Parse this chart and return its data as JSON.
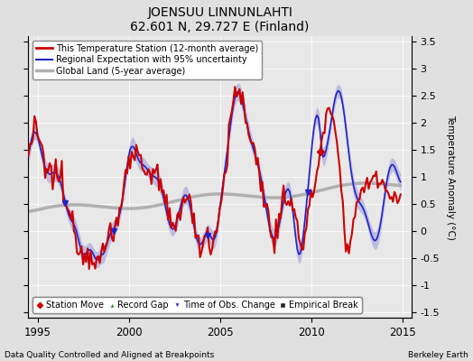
{
  "title": "JOENSUU LINNUNLAHTI",
  "subtitle": "62.601 N, 29.727 E (Finland)",
  "footer_left": "Data Quality Controlled and Aligned at Breakpoints",
  "footer_right": "Berkeley Earth",
  "xlim": [
    1994.5,
    2015.5
  ],
  "ylim": [
    -1.6,
    3.6
  ],
  "yticks": [
    -1.5,
    -1,
    -0.5,
    0,
    0.5,
    1,
    1.5,
    2,
    2.5,
    3,
    3.5
  ],
  "xticks": [
    1995,
    2000,
    2005,
    2010,
    2015
  ],
  "background_color": "#e0e0e0",
  "plot_bg_color": "#e8e8e8",
  "station_color": "#cc0000",
  "regional_color": "#2222cc",
  "regional_fill": "#aaaadd",
  "global_color": "#b0b0b0",
  "legend_items": [
    {
      "label": "This Temperature Station (12-month average)",
      "color": "#cc0000",
      "lw": 2
    },
    {
      "label": "Regional Expectation with 95% uncertainty",
      "color": "#2222cc",
      "lw": 1.5
    },
    {
      "label": "Global Land (5-year average)",
      "color": "#b0b0b0",
      "lw": 2.5
    }
  ],
  "legend2_items": [
    {
      "label": "Station Move",
      "color": "#cc0000",
      "marker": "D"
    },
    {
      "label": "Record Gap",
      "color": "#228822",
      "marker": "^"
    },
    {
      "label": "Time of Obs. Change",
      "color": "#2222cc",
      "marker": "v"
    },
    {
      "label": "Empirical Break",
      "color": "#222222",
      "marker": "s"
    }
  ],
  "marker_events": {
    "time_of_obs": [
      1996.5,
      1999.2,
      2004.3,
      2009.8
    ],
    "station_move": [
      2010.5
    ],
    "record_gap": [],
    "empirical_break": []
  }
}
